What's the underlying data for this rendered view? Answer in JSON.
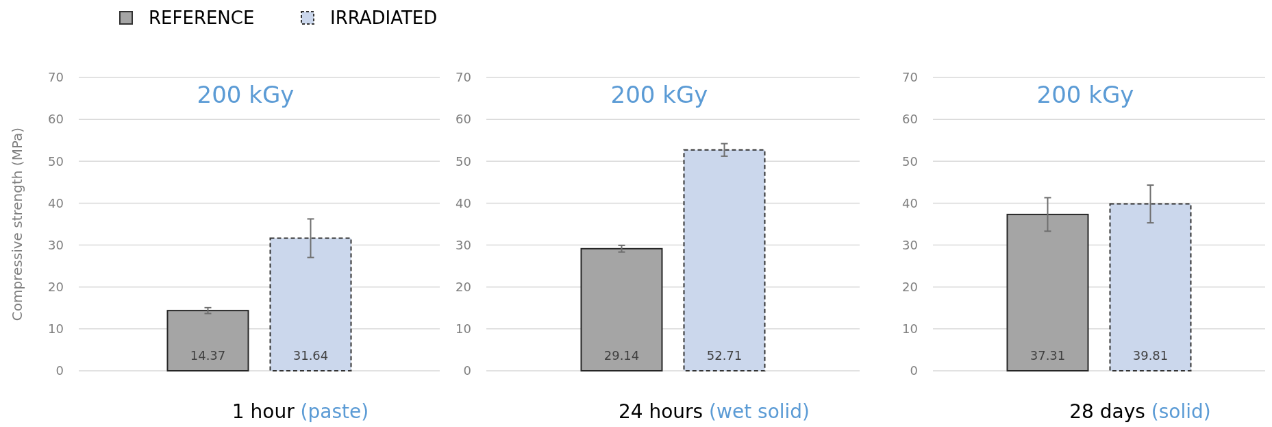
{
  "chart_data": [
    {
      "type": "bar",
      "categories": [
        null
      ],
      "series": [
        {
          "name": "REFERENCE",
          "color": "#a5a5a5",
          "values": [
            14.37
          ],
          "errors": [
            0.7
          ]
        },
        {
          "name": "IRRADIATED",
          "color": "#cbd7ec",
          "values": [
            31.64
          ],
          "errors": [
            4.6
          ],
          "line_style": "dashed"
        }
      ],
      "ylabel": "Compressive strength (MPa)",
      "xlabel": "1 hour",
      "annotations": [
        "200 kGy",
        "(paste)"
      ],
      "ylim": [
        0,
        70
      ],
      "yticks": [
        0,
        10,
        20,
        30,
        40,
        50,
        60,
        70
      ],
      "grid": "y",
      "legend": "top",
      "data_labels": true
    },
    {
      "type": "bar",
      "categories": [
        null
      ],
      "series": [
        {
          "color": "#a5a5a5",
          "values": [
            29.14
          ],
          "errors": [
            0.8
          ]
        },
        {
          "color": "#cbd7ec",
          "values": [
            52.71
          ],
          "errors": [
            1.5
          ],
          "line_style": "dashed"
        }
      ],
      "xlabel": "24 hours",
      "annotations": [
        "200 kGy",
        "(wet solid)"
      ],
      "ylim": [
        0,
        70
      ],
      "yticks": [
        0,
        10,
        20,
        30,
        40,
        50,
        60,
        70
      ],
      "grid": "y",
      "data_labels": true
    },
    {
      "type": "bar",
      "categories": [
        null
      ],
      "series": [
        {
          "color": "#a5a5a5",
          "values": [
            37.31
          ],
          "errors": [
            4.0
          ]
        },
        {
          "color": "#cbd7ec",
          "values": [
            39.81
          ],
          "errors": [
            4.5
          ],
          "line_style": "dashed"
        }
      ],
      "xlabel": "28 days",
      "annotations": [
        "200 kGy",
        "(solid)"
      ],
      "ylim": [
        0,
        70
      ],
      "yticks": [
        0,
        10,
        20,
        30,
        40,
        50,
        60,
        70
      ],
      "grid": "y",
      "data_labels": true
    }
  ]
}
